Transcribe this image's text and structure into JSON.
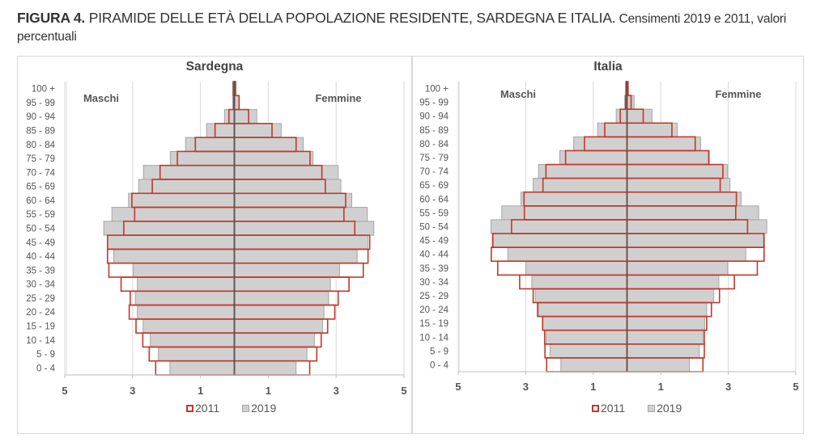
{
  "title": {
    "label": "FIGURA 4.",
    "main": " PIRAMIDE DELLE ETÀ DELLA POPOLAZIONE RESIDENTE, SARDEGNA E ITALIA.",
    "sub": " Censimenti 2019 e 2011, valori percentuali"
  },
  "colors": {
    "s2011": "#c0392b",
    "s2019_fill": "#d0d0d0",
    "s2019_stroke": "#a6a6a6",
    "axis": "#555555",
    "grid": "#d9d9d9"
  },
  "chart_data": [
    {
      "type": "bar",
      "subtype": "population-pyramid",
      "title": "Sardegna",
      "left_label": "Maschi",
      "right_label": "Femmine",
      "x_ticks": [
        "5",
        "3",
        "1",
        "1",
        "3",
        "5"
      ],
      "xlim": [
        -5,
        5
      ],
      "grid": true,
      "legend": [
        "2011",
        "2019"
      ],
      "legend_placement": "bottom",
      "categories": [
        "100 +",
        "95 - 99",
        "90 - 94",
        "85 - 89",
        "80 - 84",
        "75 - 79",
        "70 - 74",
        "65 - 69",
        "60 - 64",
        "55 - 59",
        "50 - 54",
        "45 - 49",
        "40 - 44",
        "35 - 39",
        "30 - 34",
        "25 - 29",
        "20 - 24",
        "15 - 19",
        "10 - 14",
        "5 - 9",
        "0 - 4"
      ],
      "series": [
        {
          "name": "2019",
          "sex": "Maschi",
          "values": [
            0.05,
            0.05,
            0.29,
            0.82,
            1.44,
            1.89,
            2.68,
            2.82,
            3.12,
            3.61,
            3.85,
            3.74,
            3.56,
            2.98,
            2.86,
            2.92,
            2.86,
            2.69,
            2.48,
            2.24,
            1.9
          ]
        },
        {
          "name": "2019",
          "sex": "Femmine",
          "values": [
            0.05,
            0.13,
            0.66,
            1.38,
            2.03,
            2.32,
            3.06,
            3.14,
            3.46,
            3.92,
            4.11,
            3.94,
            3.62,
            3.1,
            2.83,
            2.78,
            2.64,
            2.6,
            2.36,
            2.14,
            1.82
          ]
        },
        {
          "name": "2011",
          "sex": "Maschi",
          "values": [
            0.03,
            0.02,
            0.16,
            0.57,
            1.15,
            1.68,
            2.19,
            2.42,
            3.02,
            2.94,
            3.26,
            3.74,
            3.74,
            3.7,
            3.34,
            3.07,
            3.1,
            2.9,
            2.7,
            2.51,
            2.32
          ]
        },
        {
          "name": "2011",
          "sex": "Femmine",
          "values": [
            0.03,
            0.14,
            0.42,
            1.11,
            1.82,
            2.23,
            2.58,
            2.68,
            3.28,
            3.23,
            3.55,
            3.99,
            3.94,
            3.8,
            3.38,
            3.06,
            2.96,
            2.75,
            2.56,
            2.43,
            2.22
          ]
        }
      ]
    },
    {
      "type": "bar",
      "subtype": "population-pyramid",
      "title": "Italia",
      "left_label": "Maschi",
      "right_label": "Femmine",
      "x_ticks": [
        "5",
        "3",
        "1",
        "1",
        "3",
        "5"
      ],
      "xlim": [
        -5,
        5
      ],
      "grid": true,
      "legend": [
        "2011",
        "2019"
      ],
      "legend_placement": "bottom",
      "categories": [
        "100 +",
        "95 - 99",
        "90 - 94",
        "85 - 89",
        "80 - 84",
        "75 - 79",
        "70 - 74",
        "65 - 69",
        "60 - 64",
        "55 - 59",
        "50 - 54",
        "45 - 49",
        "40 - 44",
        "35 - 39",
        "30 - 34",
        "25 - 29",
        "20 - 24",
        "15 - 19",
        "10 - 14",
        "5 - 9",
        "0 - 4"
      ],
      "series": [
        {
          "name": "2019",
          "sex": "Maschi",
          "values": [
            0.04,
            0.07,
            0.32,
            0.87,
            1.58,
            1.99,
            2.62,
            2.78,
            3.14,
            3.71,
            4.03,
            3.96,
            3.53,
            3.0,
            2.82,
            2.72,
            2.62,
            2.49,
            2.4,
            2.28,
            1.96
          ]
        },
        {
          "name": "2019",
          "sex": "Femmine",
          "values": [
            0.04,
            0.21,
            0.74,
            1.49,
            2.18,
            2.44,
            2.98,
            3.05,
            3.38,
            3.9,
            4.14,
            4.04,
            3.52,
            2.98,
            2.72,
            2.57,
            2.36,
            2.3,
            2.25,
            2.14,
            1.85
          ]
        },
        {
          "name": "2011",
          "sex": "Maschi",
          "values": [
            0.03,
            0.04,
            0.2,
            0.66,
            1.26,
            1.82,
            2.4,
            2.49,
            3.05,
            3.04,
            3.42,
            3.98,
            4.02,
            3.83,
            3.18,
            2.78,
            2.65,
            2.5,
            2.44,
            2.43,
            2.38
          ]
        },
        {
          "name": "2011",
          "sex": "Femmine",
          "values": [
            0.03,
            0.12,
            0.48,
            1.33,
            2.02,
            2.42,
            2.84,
            2.76,
            3.24,
            3.22,
            3.57,
            4.06,
            4.06,
            3.86,
            3.18,
            2.74,
            2.5,
            2.36,
            2.29,
            2.29,
            2.25
          ]
        }
      ]
    }
  ]
}
